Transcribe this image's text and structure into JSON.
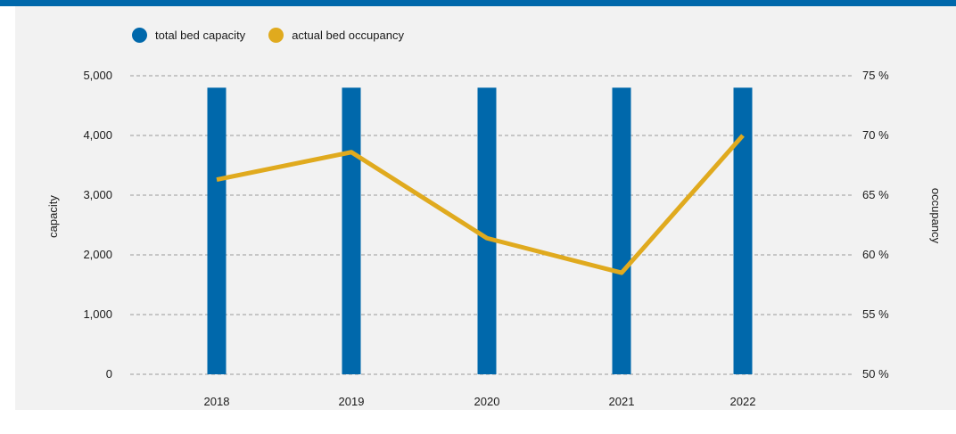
{
  "colors": {
    "bar": "#0068ab",
    "line": "#e0aa1e",
    "top_rule": "#0068ab",
    "panel": "#f2f2f2",
    "grid": "#999999",
    "text": "#1a1a1a"
  },
  "legend": {
    "items": [
      {
        "label": "total bed capacity",
        "color": "#0068ab",
        "marker": "circle"
      },
      {
        "label": "actual bed occupancy",
        "color": "#e0aa1e",
        "marker": "circle"
      }
    ]
  },
  "chart_data": {
    "type": "bar",
    "title": "",
    "categories": [
      "2018",
      "2019",
      "2020",
      "2021",
      "2022"
    ],
    "series": [
      {
        "name": "total bed capacity",
        "type": "bar",
        "axis": "left",
        "values": [
          4800,
          4800,
          4800,
          4800,
          4800
        ]
      },
      {
        "name": "actual bed occupancy",
        "type": "line",
        "axis": "right",
        "values": [
          66.3,
          68.6,
          61.4,
          58.5,
          70.0
        ]
      }
    ],
    "xlabel": "",
    "ylabel": "capacity",
    "y2label": "occupancy",
    "ylim": [
      0,
      5000
    ],
    "y2lim": [
      50,
      75
    ],
    "yticks": [
      "0",
      "1,000",
      "2,000",
      "3,000",
      "4,000",
      "5,000"
    ],
    "y2ticks": [
      "50 %",
      "55 %",
      "60 %",
      "65 %",
      "70 %",
      "75 %"
    ],
    "grid": true,
    "legend_position": "top-left"
  }
}
